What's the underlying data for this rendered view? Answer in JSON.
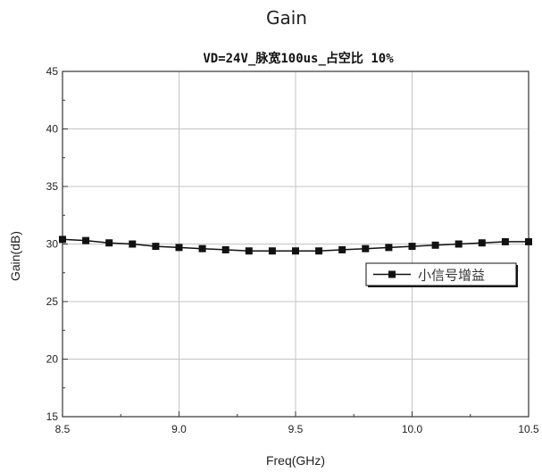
{
  "page": {
    "heading": "Gain"
  },
  "chart_data": {
    "type": "line",
    "title": "VD=24V_脉宽100us_占空比 10%",
    "xlabel": "Freq(GHz)",
    "ylabel": "Gain(dB)",
    "xlim": [
      8.5,
      10.5
    ],
    "ylim": [
      15,
      45
    ],
    "x_ticks": [
      8.5,
      9.0,
      9.5,
      10.0,
      10.5
    ],
    "x_tick_labels": [
      "8.5",
      "9.0",
      "9.5",
      "10.0",
      "10.5"
    ],
    "y_ticks": [
      15,
      20,
      25,
      30,
      35,
      40,
      45
    ],
    "y_tick_labels": [
      "15",
      "20",
      "25",
      "30",
      "35",
      "40",
      "45"
    ],
    "grid": true,
    "legend_position": "right",
    "series": [
      {
        "name": "小信号增益",
        "marker": "square",
        "color": "#111111",
        "x": [
          8.5,
          8.6,
          8.7,
          8.8,
          8.9,
          9.0,
          9.1,
          9.2,
          9.3,
          9.4,
          9.5,
          9.6,
          9.7,
          9.8,
          9.9,
          10.0,
          10.1,
          10.2,
          10.3,
          10.4,
          10.5
        ],
        "y": [
          30.4,
          30.3,
          30.1,
          30.0,
          29.8,
          29.7,
          29.6,
          29.5,
          29.4,
          29.4,
          29.4,
          29.4,
          29.5,
          29.6,
          29.7,
          29.8,
          29.9,
          30.0,
          30.1,
          30.2,
          30.2
        ]
      }
    ]
  }
}
